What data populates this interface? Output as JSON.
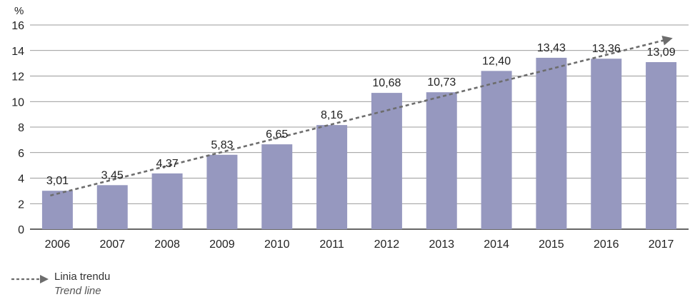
{
  "chart_data": {
    "type": "bar",
    "unit_label": "%",
    "categories": [
      "2006",
      "2007",
      "2008",
      "2009",
      "2010",
      "2011",
      "2012",
      "2013",
      "2014",
      "2015",
      "2016",
      "2017"
    ],
    "values": [
      3.01,
      3.45,
      4.37,
      5.83,
      6.65,
      8.16,
      10.68,
      10.73,
      12.4,
      13.43,
      13.36,
      13.09
    ],
    "data_labels": [
      "3,01",
      "3,45",
      "4,37",
      "5,83",
      "6,65",
      "8,16",
      "10,68",
      "10,73",
      "12,40",
      "13,43",
      "13,36",
      "13,09"
    ],
    "ylim": [
      0,
      16
    ],
    "yticks": [
      "0",
      "2",
      "4",
      "6",
      "8",
      "10",
      "12",
      "14",
      "16"
    ],
    "grid": true,
    "trend_line": {
      "style": "dashed-arrow"
    },
    "legend": {
      "position": "bottom-left",
      "label": "Linia trendu",
      "sublabel": "Trend line"
    },
    "colors": {
      "bar": "#9698bf",
      "trend": "#6d6d6d",
      "grid": "#7a7a7a",
      "axis": "#333333"
    }
  }
}
